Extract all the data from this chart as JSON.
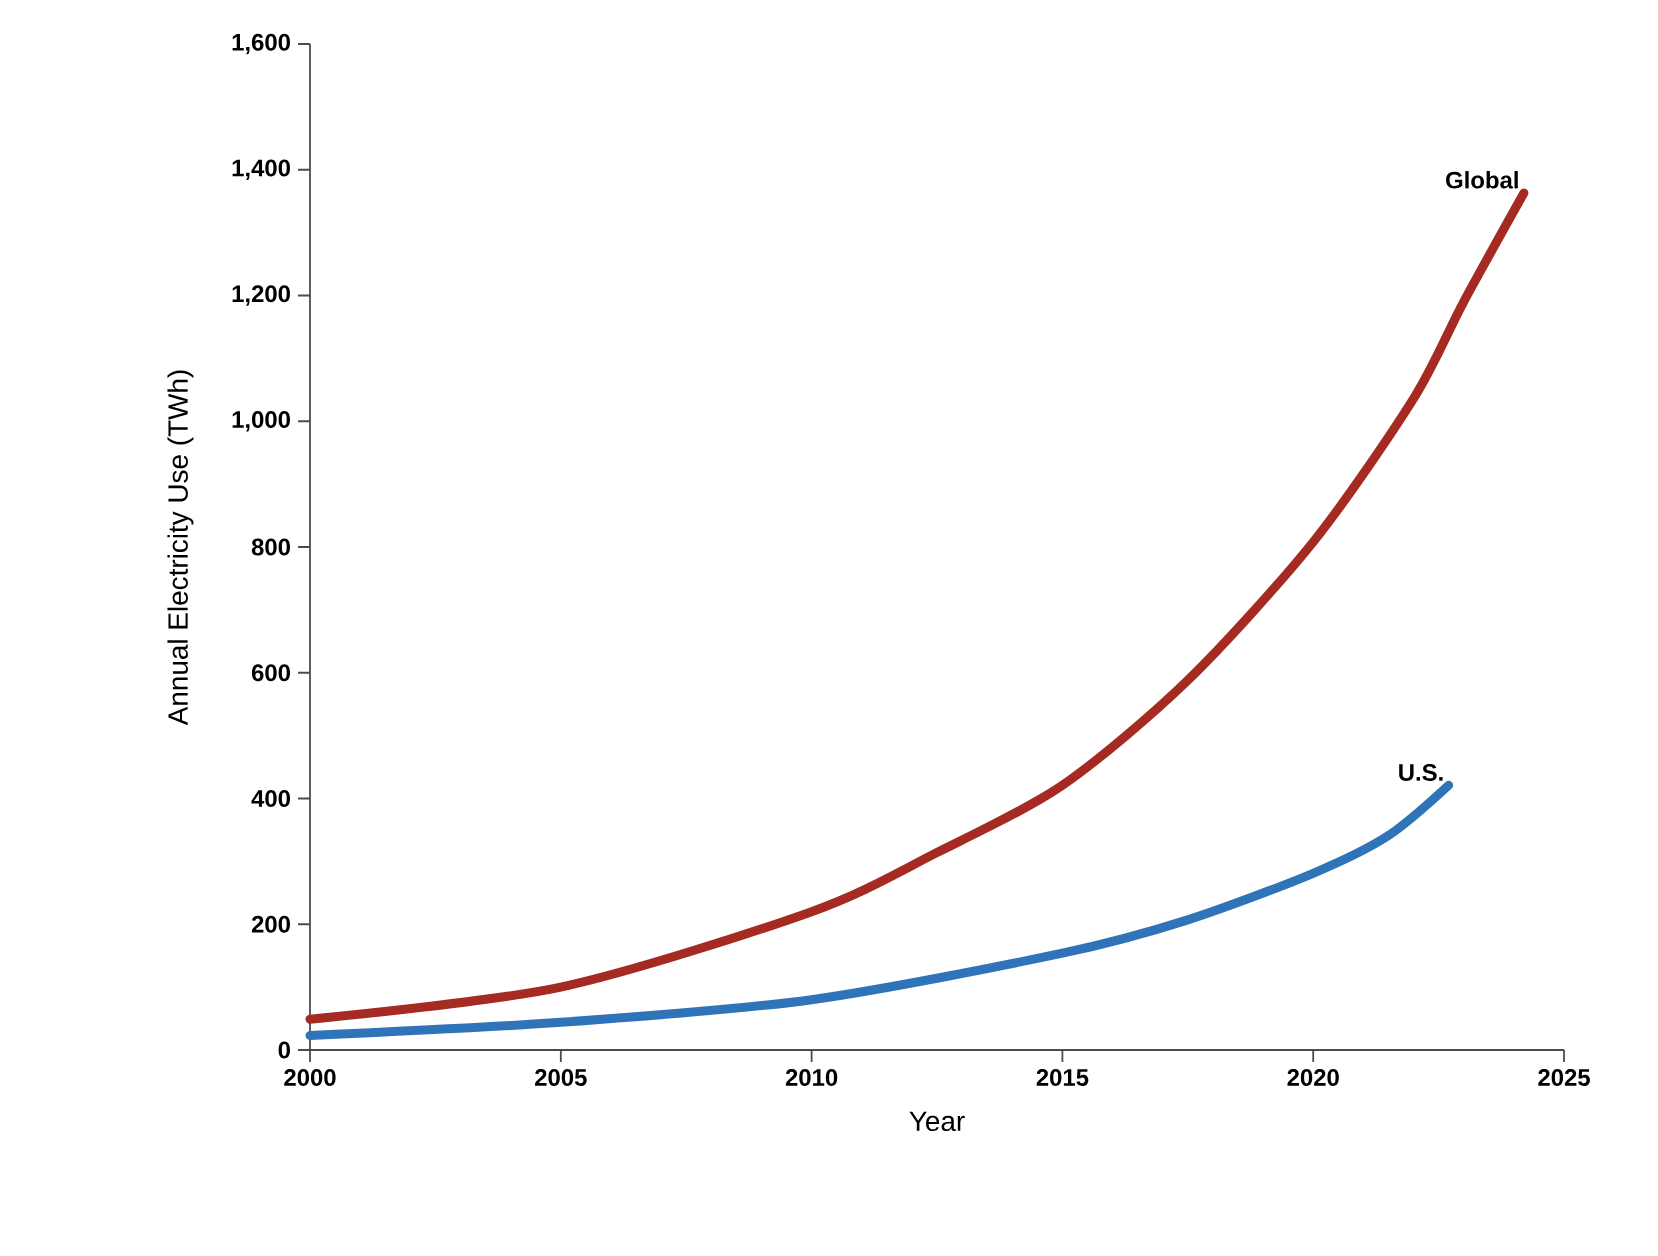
{
  "chart_data": {
    "type": "line",
    "xlabel": "Year",
    "ylabel": "Annual Electricity Use (TWh)",
    "xlim": [
      2000,
      2025
    ],
    "xticks": [
      2000,
      2005,
      2010,
      2015,
      2020,
      2025
    ],
    "ylim": [
      0,
      1600
    ],
    "yticks": [
      0,
      200,
      400,
      600,
      800,
      {
        "value": 1000,
        "label": "1,000"
      },
      {
        "value": 1200,
        "label": "1,200"
      },
      {
        "value": 1400,
        "label": "1,400"
      },
      {
        "value": 1600,
        "label": "1,600"
      }
    ],
    "grid": false,
    "legend": false,
    "marker": "none",
    "line_style": "solid",
    "series": [
      {
        "name": "Global",
        "color": "#a52a22",
        "x": [
          2000,
          2005,
          2010,
          2012.5,
          2015,
          2017.5,
          2020,
          2022,
          2023,
          2024.2
        ],
        "values": [
          49,
          100,
          220,
          314,
          421,
          588,
          808,
          1036,
          1190,
          1363
        ]
      },
      {
        "name": "U.S.",
        "color": "#2f74b8",
        "x": [
          2000,
          2005,
          2010,
          2015,
          2017.5,
          2020,
          2021.5,
          2022.7
        ],
        "values": [
          23,
          44,
          80,
          154,
          207,
          281,
          341,
          421
        ]
      }
    ]
  }
}
